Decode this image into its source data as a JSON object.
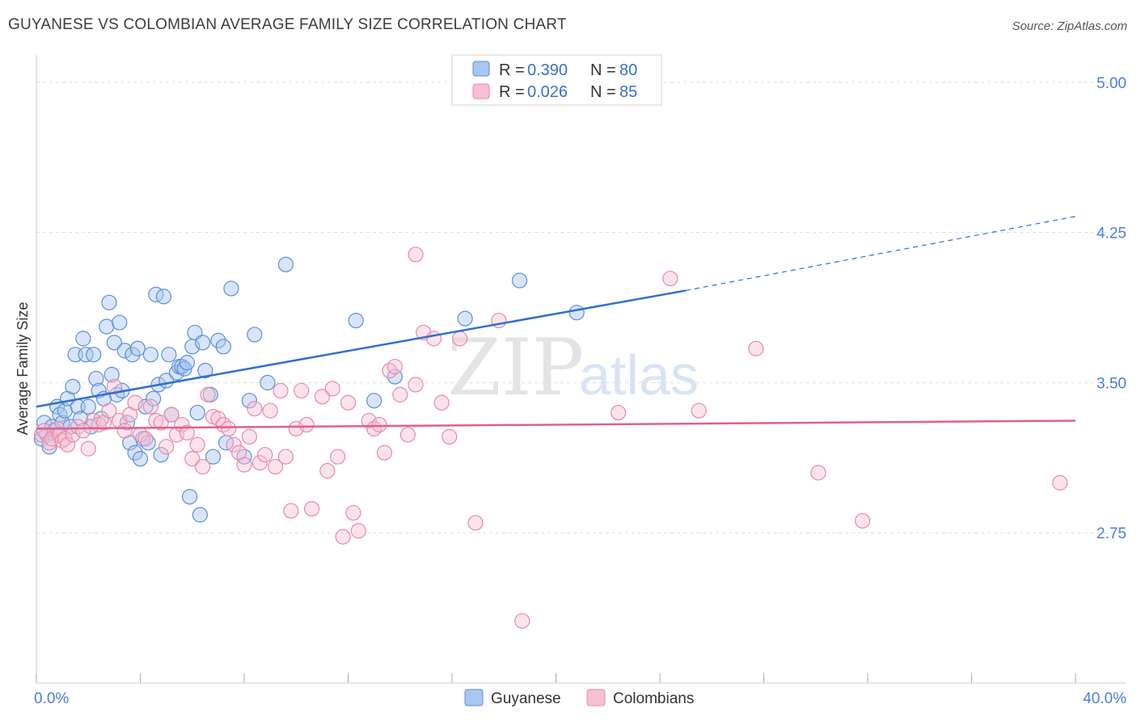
{
  "title": "GUYANESE VS COLOMBIAN AVERAGE FAMILY SIZE CORRELATION CHART",
  "source": "Source: ZipAtlas.com",
  "watermark": {
    "zip": "ZIP",
    "atlas": "atlas"
  },
  "colors": {
    "guyanese_fill": "#a9c6f0",
    "guyanese_stroke": "#5a8ed8",
    "guyanese_line": "#2f6fd0",
    "colombian_fill": "#f6c0d2",
    "colombian_stroke": "#e889a9",
    "colombian_line": "#e0608c",
    "grid": "#dddddd",
    "tick_text": "#4a7fd4"
  },
  "legend": {
    "rows": [
      {
        "r_label": "R =",
        "r_value": "0.390",
        "n_label": "N =",
        "n_value": "80"
      },
      {
        "r_label": "R =",
        "r_value": "0.026",
        "n_label": "N =",
        "n_value": "85"
      }
    ]
  },
  "bottom_legend": [
    "Guyanese",
    "Colombians"
  ],
  "chart_data": {
    "type": "scatter",
    "title": "GUYANESE VS COLOMBIAN AVERAGE FAMILY SIZE CORRELATION CHART",
    "xlabel": "",
    "ylabel": "Average Family Size",
    "xlim": [
      0,
      40
    ],
    "ylim": [
      2.0,
      5.1
    ],
    "x_tick_labels": [
      "0.0%",
      "40.0%"
    ],
    "y_ticks": [
      2.75,
      3.5,
      4.25,
      5.0
    ],
    "y_tick_labels": [
      "2.75",
      "3.50",
      "4.25",
      "5.00"
    ],
    "grid": true,
    "legend_position": "top-center",
    "series": [
      {
        "name": "Guyanese",
        "r": 0.39,
        "n": 80,
        "trend": {
          "x0": 0,
          "y0": 3.38,
          "x1": 25,
          "y1": 3.96,
          "dashed_to_x": 40,
          "dashed_to_y": 4.33
        },
        "points": [
          [
            0.2,
            3.22
          ],
          [
            0.3,
            3.3
          ],
          [
            0.4,
            3.24
          ],
          [
            0.5,
            3.18
          ],
          [
            0.6,
            3.28
          ],
          [
            0.7,
            3.26
          ],
          [
            0.8,
            3.38
          ],
          [
            0.9,
            3.34
          ],
          [
            1.0,
            3.3
          ],
          [
            1.1,
            3.36
          ],
          [
            1.2,
            3.42
          ],
          [
            1.3,
            3.28
          ],
          [
            1.4,
            3.48
          ],
          [
            1.5,
            3.64
          ],
          [
            1.6,
            3.38
          ],
          [
            1.7,
            3.32
          ],
          [
            1.8,
            3.72
          ],
          [
            1.9,
            3.64
          ],
          [
            2.0,
            3.38
          ],
          [
            2.1,
            3.28
          ],
          [
            2.2,
            3.64
          ],
          [
            2.3,
            3.52
          ],
          [
            2.4,
            3.46
          ],
          [
            2.5,
            3.32
          ],
          [
            2.6,
            3.42
          ],
          [
            2.7,
            3.78
          ],
          [
            2.8,
            3.9
          ],
          [
            2.9,
            3.54
          ],
          [
            3.0,
            3.7
          ],
          [
            3.1,
            3.44
          ],
          [
            3.2,
            3.8
          ],
          [
            3.3,
            3.46
          ],
          [
            3.4,
            3.66
          ],
          [
            3.5,
            3.3
          ],
          [
            3.6,
            3.2
          ],
          [
            3.7,
            3.64
          ],
          [
            3.8,
            3.15
          ],
          [
            3.9,
            3.67
          ],
          [
            4.0,
            3.12
          ],
          [
            4.1,
            3.22
          ],
          [
            4.2,
            3.38
          ],
          [
            4.3,
            3.2
          ],
          [
            4.4,
            3.64
          ],
          [
            4.5,
            3.42
          ],
          [
            4.6,
            3.94
          ],
          [
            4.7,
            3.49
          ],
          [
            4.8,
            3.14
          ],
          [
            4.9,
            3.93
          ],
          [
            5.0,
            3.51
          ],
          [
            5.1,
            3.64
          ],
          [
            5.2,
            3.34
          ],
          [
            5.4,
            3.55
          ],
          [
            5.5,
            3.58
          ],
          [
            5.6,
            3.58
          ],
          [
            5.7,
            3.57
          ],
          [
            5.8,
            3.6
          ],
          [
            5.9,
            2.93
          ],
          [
            6.0,
            3.68
          ],
          [
            6.1,
            3.75
          ],
          [
            6.2,
            3.35
          ],
          [
            6.3,
            2.84
          ],
          [
            6.4,
            3.7
          ],
          [
            6.5,
            3.56
          ],
          [
            6.7,
            3.44
          ],
          [
            6.8,
            3.13
          ],
          [
            7.0,
            3.71
          ],
          [
            7.2,
            3.68
          ],
          [
            7.3,
            3.2
          ],
          [
            7.5,
            3.97
          ],
          [
            8.0,
            3.13
          ],
          [
            8.2,
            3.41
          ],
          [
            8.4,
            3.74
          ],
          [
            8.9,
            3.5
          ],
          [
            9.6,
            4.09
          ],
          [
            12.3,
            3.81
          ],
          [
            13.0,
            3.41
          ],
          [
            13.8,
            3.53
          ],
          [
            16.5,
            3.82
          ],
          [
            18.6,
            4.01
          ],
          [
            20.8,
            3.85
          ]
        ]
      },
      {
        "name": "Colombians",
        "r": 0.026,
        "n": 85,
        "trend": {
          "x0": 0,
          "y0": 3.27,
          "x1": 40,
          "y1": 3.31
        },
        "points": [
          [
            0.2,
            3.24
          ],
          [
            0.3,
            3.26
          ],
          [
            0.5,
            3.2
          ],
          [
            0.6,
            3.22
          ],
          [
            0.8,
            3.27
          ],
          [
            0.9,
            3.24
          ],
          [
            1.0,
            3.21
          ],
          [
            1.1,
            3.22
          ],
          [
            1.2,
            3.19
          ],
          [
            1.4,
            3.24
          ],
          [
            1.6,
            3.28
          ],
          [
            1.8,
            3.26
          ],
          [
            2.0,
            3.17
          ],
          [
            2.2,
            3.31
          ],
          [
            2.4,
            3.29
          ],
          [
            2.6,
            3.3
          ],
          [
            2.8,
            3.36
          ],
          [
            3.0,
            3.48
          ],
          [
            3.2,
            3.31
          ],
          [
            3.4,
            3.26
          ],
          [
            3.6,
            3.34
          ],
          [
            3.8,
            3.4
          ],
          [
            4.0,
            3.24
          ],
          [
            4.2,
            3.22
          ],
          [
            4.4,
            3.38
          ],
          [
            4.6,
            3.31
          ],
          [
            4.8,
            3.3
          ],
          [
            5.0,
            3.18
          ],
          [
            5.2,
            3.34
          ],
          [
            5.4,
            3.24
          ],
          [
            5.6,
            3.29
          ],
          [
            5.8,
            3.25
          ],
          [
            6.0,
            3.12
          ],
          [
            6.2,
            3.19
          ],
          [
            6.4,
            3.08
          ],
          [
            6.6,
            3.44
          ],
          [
            6.8,
            3.33
          ],
          [
            7.0,
            3.32
          ],
          [
            7.2,
            3.29
          ],
          [
            7.4,
            3.27
          ],
          [
            7.6,
            3.19
          ],
          [
            7.8,
            3.15
          ],
          [
            8.0,
            3.09
          ],
          [
            8.2,
            3.23
          ],
          [
            8.4,
            3.37
          ],
          [
            8.6,
            3.1
          ],
          [
            8.8,
            3.14
          ],
          [
            9.0,
            3.36
          ],
          [
            9.2,
            3.08
          ],
          [
            9.4,
            3.46
          ],
          [
            9.6,
            3.13
          ],
          [
            9.8,
            2.86
          ],
          [
            10.0,
            3.27
          ],
          [
            10.2,
            3.46
          ],
          [
            10.4,
            3.29
          ],
          [
            10.6,
            2.87
          ],
          [
            11.0,
            3.43
          ],
          [
            11.2,
            3.06
          ],
          [
            11.4,
            3.47
          ],
          [
            11.6,
            3.13
          ],
          [
            11.8,
            2.73
          ],
          [
            12.0,
            3.4
          ],
          [
            12.2,
            2.85
          ],
          [
            12.4,
            2.76
          ],
          [
            12.8,
            3.31
          ],
          [
            13.0,
            3.27
          ],
          [
            13.2,
            3.29
          ],
          [
            13.4,
            3.15
          ],
          [
            13.6,
            3.56
          ],
          [
            13.8,
            3.58
          ],
          [
            14.0,
            3.44
          ],
          [
            14.3,
            3.24
          ],
          [
            14.6,
            3.49
          ],
          [
            14.9,
            3.75
          ],
          [
            15.3,
            3.72
          ],
          [
            15.6,
            3.4
          ],
          [
            15.9,
            3.23
          ],
          [
            16.3,
            3.72
          ],
          [
            16.9,
            2.8
          ],
          [
            17.8,
            3.81
          ],
          [
            22.4,
            3.35
          ],
          [
            24.4,
            4.02
          ],
          [
            25.5,
            3.36
          ],
          [
            27.7,
            3.67
          ],
          [
            30.1,
            3.05
          ]
        ],
        "extra_points": [
          [
            18.7,
            2.31
          ],
          [
            31.8,
            2.81
          ],
          [
            39.4,
            3.0
          ],
          [
            14.6,
            4.14
          ]
        ]
      }
    ]
  }
}
